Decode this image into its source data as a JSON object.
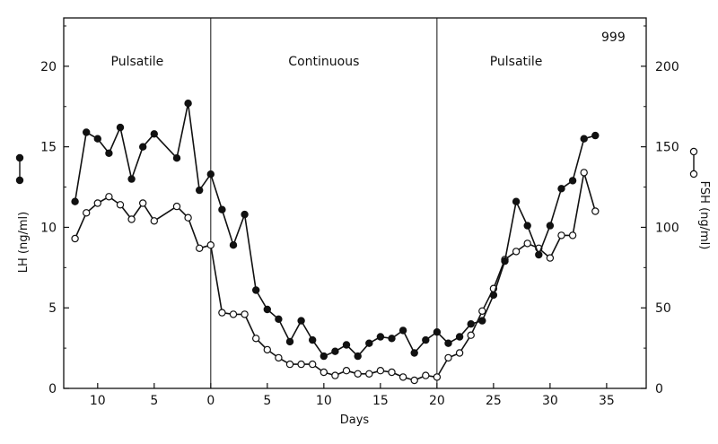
{
  "chart_data": {
    "type": "line",
    "figure_id": "999",
    "xlabel": "Days",
    "ylabel_left": "LH (ng/ml)",
    "ylabel_right": "FSH (ng/ml)",
    "x_ticks": [
      {
        "value": -10,
        "label": "10"
      },
      {
        "value": -5,
        "label": "5"
      },
      {
        "value": 0,
        "label": "0"
      },
      {
        "value": 5,
        "label": "5"
      },
      {
        "value": 10,
        "label": "10"
      },
      {
        "value": 15,
        "label": "15"
      },
      {
        "value": 20,
        "label": "20"
      },
      {
        "value": 25,
        "label": "25"
      },
      {
        "value": 30,
        "label": "30"
      },
      {
        "value": 35,
        "label": "35"
      }
    ],
    "xlim": [
      -13,
      38.5
    ],
    "ylim_left": [
      0,
      23
    ],
    "ylim_right": [
      0,
      230
    ],
    "y_ticks_left": [
      "0",
      "5",
      "10",
      "15",
      "20"
    ],
    "y_ticks_right": [
      "0",
      "50",
      "100",
      "150",
      "200"
    ],
    "phase_boundaries": [
      0,
      20
    ],
    "phases": [
      {
        "label": "Pulsatile",
        "x_center": -6.5
      },
      {
        "label": "Continuous",
        "x_center": 10
      },
      {
        "label": "Pulsatile",
        "x_center": 27
      }
    ],
    "series": [
      {
        "name": "LH",
        "axis": "left",
        "marker": "filled",
        "x": [
          -12,
          -11,
          -10,
          -9,
          -8,
          -7,
          -6,
          -5,
          -3,
          -2,
          -1,
          0,
          1,
          2,
          3,
          4,
          5,
          6,
          7,
          8,
          9,
          10,
          11,
          12,
          13,
          14,
          15,
          16,
          17,
          18,
          19,
          20,
          21,
          22,
          23,
          24,
          25,
          26,
          27,
          28,
          29,
          30,
          31,
          32,
          33,
          34
        ],
        "values": [
          11.6,
          15.9,
          15.5,
          14.6,
          16.2,
          13.0,
          15.0,
          15.8,
          14.3,
          17.7,
          12.3,
          13.3,
          11.1,
          8.9,
          10.8,
          6.1,
          4.9,
          4.3,
          2.9,
          4.2,
          3.0,
          2.0,
          2.3,
          2.7,
          2.0,
          2.8,
          3.2,
          3.1,
          3.6,
          2.2,
          3.0,
          3.5,
          2.8,
          3.2,
          4.0,
          4.2,
          5.8,
          7.9,
          11.6,
          10.1,
          8.3,
          10.1,
          12.4,
          12.9,
          15.5,
          15.7
        ]
      },
      {
        "name": "FSH",
        "axis": "right",
        "marker": "open",
        "x": [
          -12,
          -11,
          -10,
          -9,
          -8,
          -7,
          -6,
          -5,
          -3,
          -2,
          -1,
          0,
          1,
          2,
          3,
          4,
          5,
          6,
          7,
          8,
          9,
          10,
          11,
          12,
          13,
          14,
          15,
          16,
          17,
          18,
          19,
          20,
          21,
          22,
          23,
          24,
          25,
          26,
          27,
          28,
          29,
          30,
          31,
          32,
          33,
          34
        ],
        "values": [
          93,
          109,
          115,
          119,
          114,
          105,
          115,
          104,
          113,
          106,
          87,
          89,
          47,
          46,
          46,
          31,
          24,
          19,
          15,
          15,
          15,
          10,
          8,
          11,
          9,
          9,
          11,
          10,
          7,
          5,
          8,
          7,
          19,
          22,
          33,
          48,
          62,
          80,
          85,
          90,
          87,
          81,
          95,
          95,
          134,
          110
        ]
      }
    ],
    "legend": {
      "lh_marker": "filled",
      "fsh_marker": "open"
    }
  }
}
